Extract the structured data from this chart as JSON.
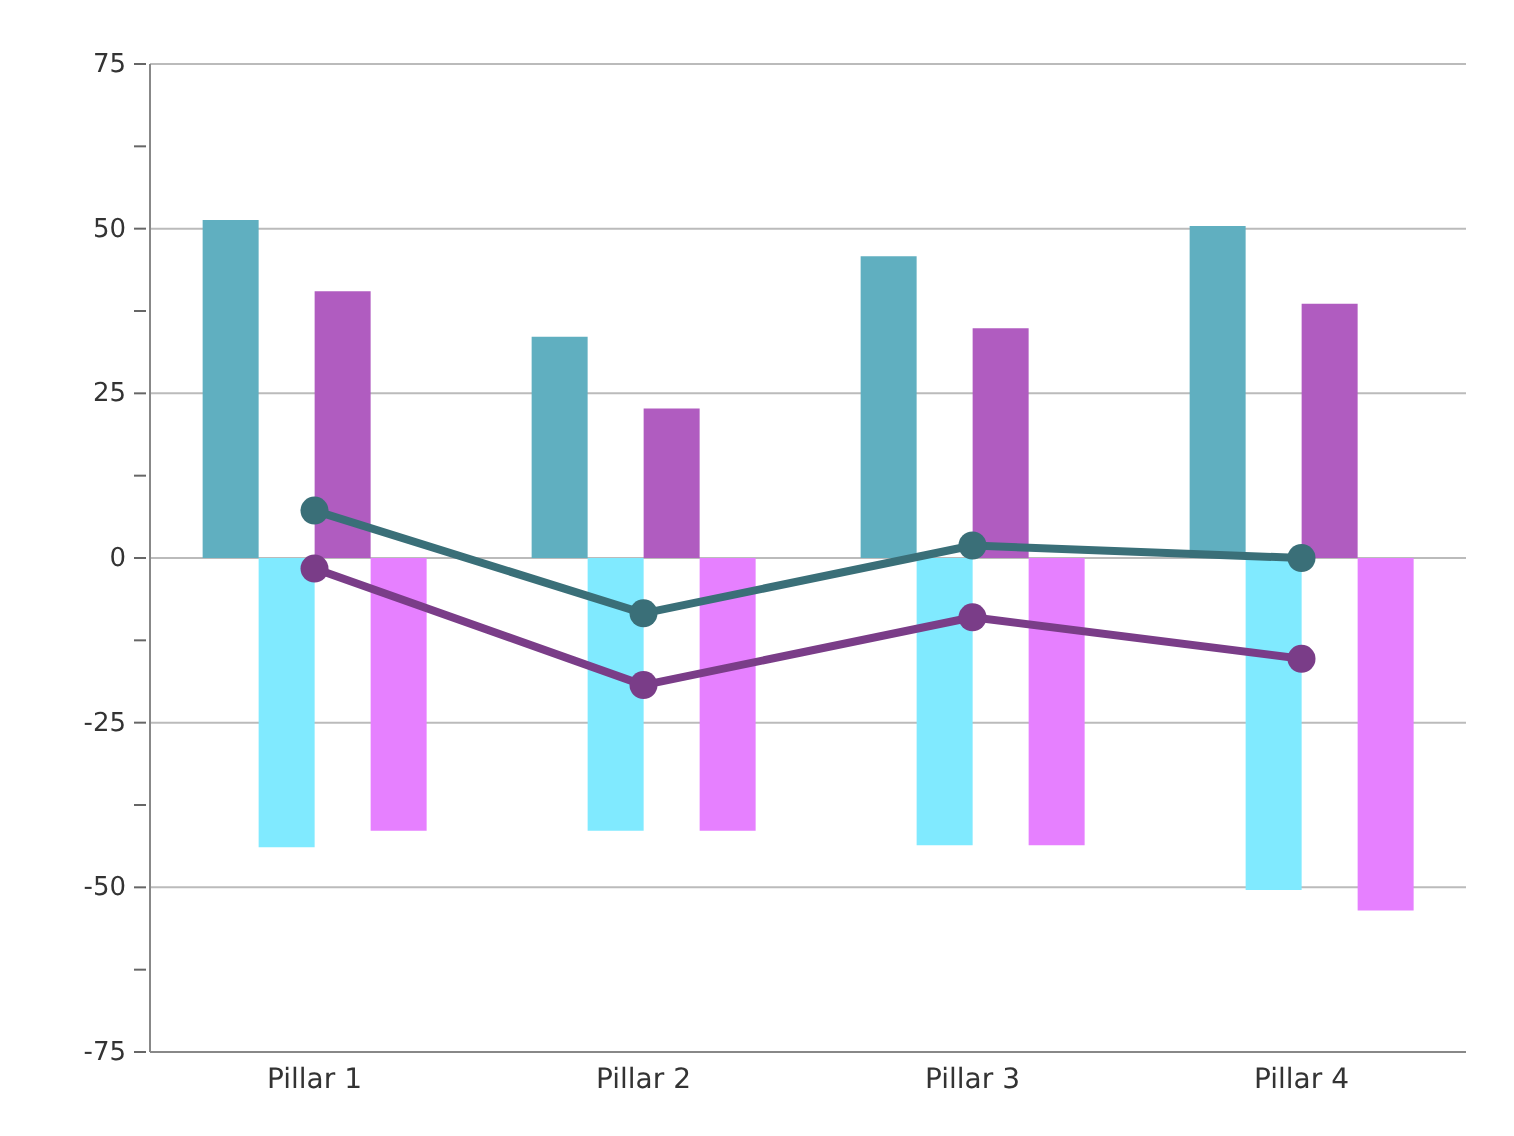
{
  "chart_data": {
    "type": "bar",
    "categories": [
      "Pillar 1",
      "Pillar 2",
      "Pillar 3",
      "Pillar 4"
    ],
    "series": [
      {
        "color": "#60afc0",
        "values": [
          51.3,
          33.6,
          45.8,
          50.4
        ]
      },
      {
        "color": "#80eaff",
        "values": [
          -43.9,
          -41.4,
          -43.6,
          -50.4
        ]
      },
      {
        "color": "#b05cc0",
        "values": [
          40.5,
          22.7,
          34.9,
          38.6
        ]
      },
      {
        "color": "#e680ff",
        "values": [
          -41.4,
          -41.4,
          -43.6,
          -53.5
        ]
      },
      {
        "type": "line",
        "color": "#3a6f78",
        "values": [
          7.2,
          -8.4,
          1.9,
          0
        ]
      },
      {
        "type": "line",
        "color": "#7a3d88",
        "values": [
          -1.6,
          -19.3,
          -9,
          -15.3
        ]
      }
    ],
    "ylim": [
      -75,
      75
    ],
    "yticks": [
      -75,
      {
        "value": -62.5,
        "label": null
      },
      -50,
      {
        "value": -37.5,
        "label": null
      },
      -25,
      {
        "value": -12.5,
        "label": null
      },
      0,
      {
        "value": 12.5,
        "label": null
      },
      25,
      {
        "value": 37.5,
        "label": null
      },
      50,
      {
        "value": 62.5,
        "label": null
      },
      75
    ],
    "grid": "y",
    "marker": "circle",
    "line_style": "solid"
  }
}
